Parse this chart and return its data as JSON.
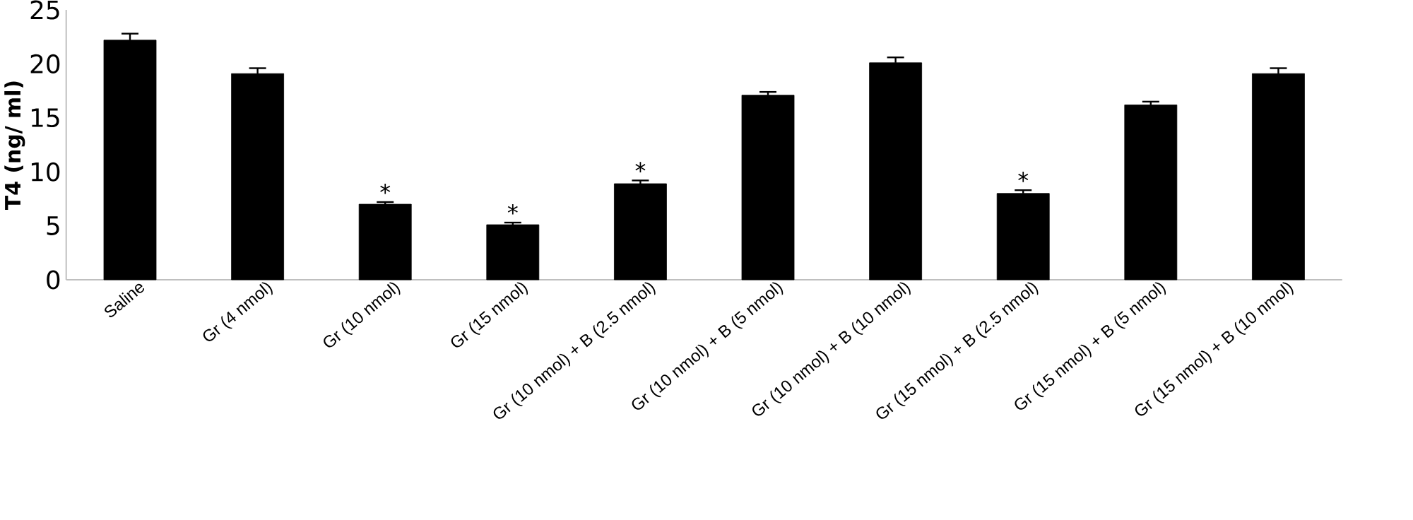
{
  "chart_data": {
    "type": "bar",
    "ylabel": "T4 (ng/ ml)",
    "categories": [
      "Saline",
      "Gr (4 nmol)",
      "Gr (10 nmol)",
      "Gr (15 nmol)",
      "Gr (10 nmol) + B (2.5 nmol)",
      "Gr (10 nmol) + B (5 nmol)",
      "Gr (10 nmol) + B (10 nmol)",
      "Gr (15 nmol) + B (2.5 nmol)",
      "Gr (15 nmol) + B (5 nmol)",
      "Gr (15 nmol) + B (10 nmol)"
    ],
    "values": [
      22.2,
      19.1,
      7.0,
      5.1,
      8.9,
      17.1,
      20.1,
      8.0,
      16.2,
      19.1
    ],
    "errors": [
      0.6,
      0.5,
      0.2,
      0.2,
      0.3,
      0.3,
      0.5,
      0.3,
      0.3,
      0.5
    ],
    "color": "#000000",
    "ylim": [
      0,
      25
    ],
    "yticks": [
      0,
      5,
      10,
      15,
      20,
      25
    ],
    "annotations": [
      {
        "text": "*",
        "x": "Gr (10 nmol)",
        "y": 7.2
      },
      {
        "text": "*",
        "x": "Gr (15 nmol)",
        "y": 5.3
      },
      {
        "text": "*",
        "x": "Gr (10 nmol) + B (2.5 nmol)",
        "y": 9.2
      },
      {
        "text": "*",
        "x": "Gr (15 nmol) + B (2.5 nmol)",
        "y": 8.3
      }
    ]
  }
}
